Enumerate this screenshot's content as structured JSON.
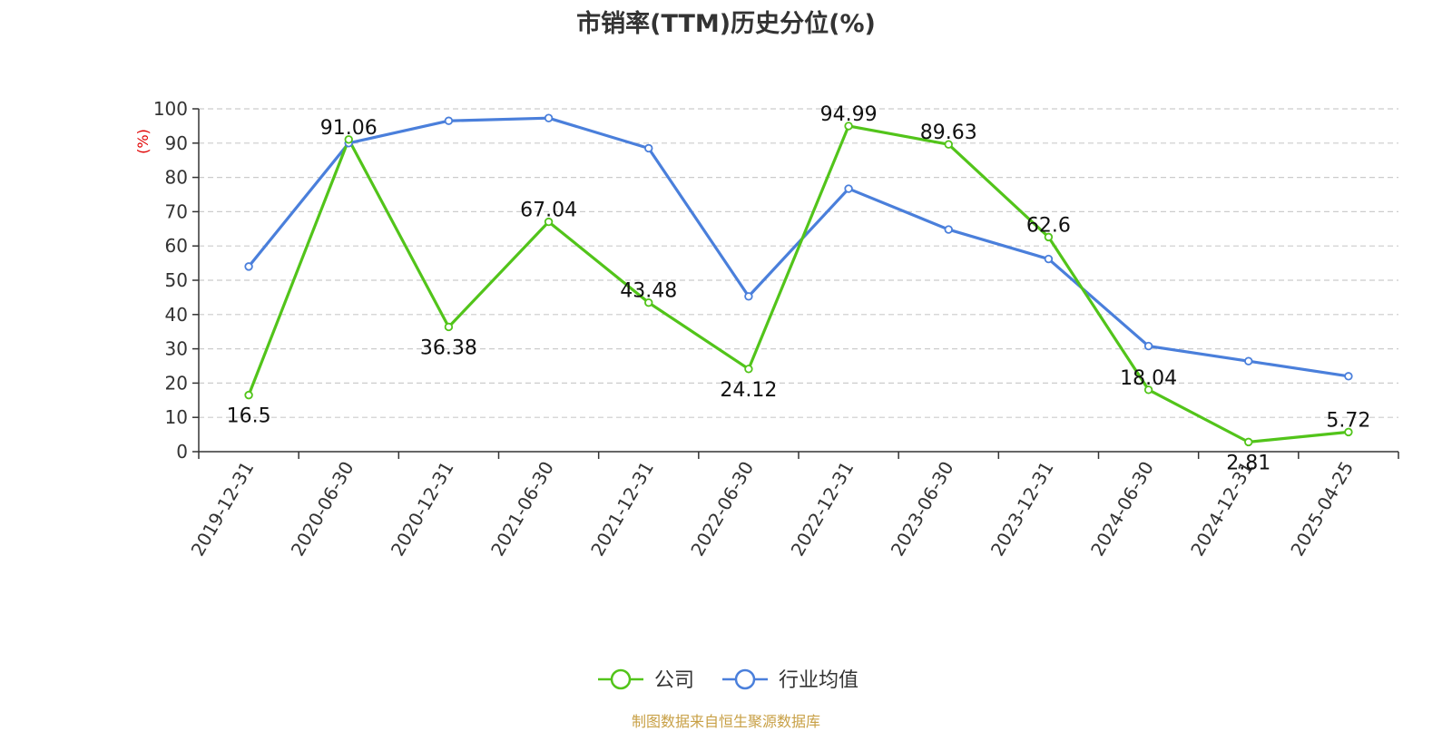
{
  "title": "市销率(TTM)历史分位(%)",
  "source_note": "制图数据来自恒生聚源数据库",
  "chart_data": {
    "type": "line",
    "title": "市销率(TTM)历史分位(%)",
    "ylabel": "(%)",
    "xlabel": "",
    "ylim": [
      0,
      100
    ],
    "yticks": [
      0,
      10,
      20,
      30,
      40,
      50,
      60,
      70,
      80,
      90,
      100
    ],
    "grid": true,
    "legend_position": "bottom-center",
    "categories": [
      "2019-12-31",
      "2020-06-30",
      "2020-12-31",
      "2021-06-30",
      "2021-12-31",
      "2022-06-30",
      "2022-12-31",
      "2023-06-30",
      "2023-12-31",
      "2024-06-30",
      "2024-12-31",
      "2025-04-25"
    ],
    "series": [
      {
        "name": "公司",
        "color": "#52c41a",
        "values": [
          16.5,
          91.06,
          36.38,
          67.04,
          43.48,
          24.12,
          94.99,
          89.63,
          62.6,
          18.04,
          2.81,
          5.72
        ],
        "labels": [
          "16.5",
          "91.06",
          "36.38",
          "67.04",
          "43.48",
          "24.12",
          "94.99",
          "89.63",
          "62.6",
          "18.04",
          "2.81",
          "5.72"
        ]
      },
      {
        "name": "行业均值",
        "color": "#4a7fdb",
        "values": [
          54,
          90,
          96.5,
          97.3,
          88.5,
          45.3,
          76.7,
          64.8,
          56.2,
          30.8,
          26.4,
          22
        ]
      }
    ]
  }
}
